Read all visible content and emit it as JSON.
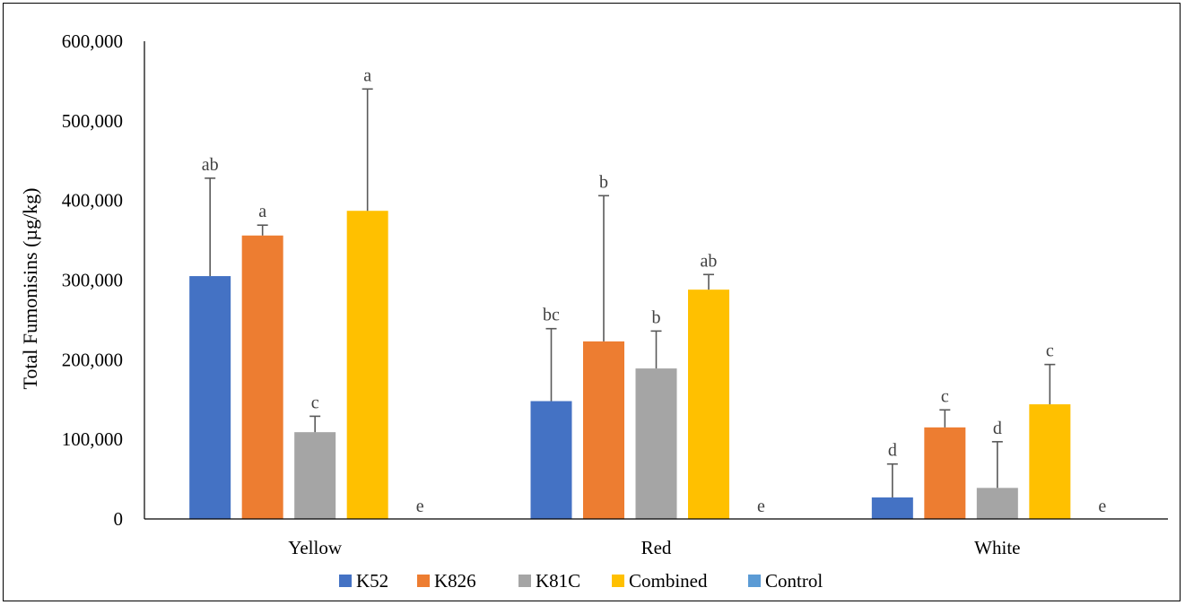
{
  "chart_data": {
    "type": "bar",
    "ylabel": "Total Fumonisins (µg/kg)",
    "xlabel": "",
    "ylim": [
      0,
      600000
    ],
    "yticks": [
      0,
      100000,
      200000,
      300000,
      400000,
      500000,
      600000
    ],
    "ytick_labels": [
      "0",
      "100,000",
      "200,000",
      "300,000",
      "400,000",
      "500,000",
      "600,000"
    ],
    "categories": [
      "Yellow",
      "Red",
      "White"
    ],
    "grid": false,
    "legend_position": "bottom",
    "series": [
      {
        "name": "K52",
        "color": "#4472C4",
        "values": [
          305000,
          148000,
          27000
        ],
        "errors": [
          123000,
          91000,
          42000
        ],
        "letters": [
          "ab",
          "bc",
          "d"
        ]
      },
      {
        "name": "K826",
        "color": "#ED7D31",
        "values": [
          356000,
          223000,
          115000
        ],
        "errors": [
          13000,
          183000,
          22000
        ],
        "letters": [
          "a",
          "b",
          "c"
        ]
      },
      {
        "name": "K81C",
        "color": "#A5A5A5",
        "values": [
          109000,
          189000,
          39000
        ],
        "errors": [
          20000,
          47000,
          58000
        ],
        "letters": [
          "c",
          "b",
          "d"
        ]
      },
      {
        "name": "Combined",
        "color": "#FFC000",
        "values": [
          387000,
          288000,
          144000
        ],
        "errors": [
          153000,
          19000,
          50000
        ],
        "letters": [
          "a",
          "ab",
          "c"
        ]
      },
      {
        "name": "Control",
        "color": "#5B9BD5",
        "values": [
          0,
          0,
          0
        ],
        "errors": [
          0,
          0,
          0
        ],
        "letters": [
          "e",
          "e",
          "e"
        ]
      }
    ]
  }
}
